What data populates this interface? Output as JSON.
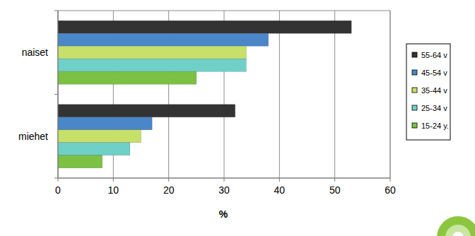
{
  "chart_data": {
    "type": "bar",
    "orientation": "horizontal",
    "x_label": "%",
    "categories": [
      "naiset",
      "miehet"
    ],
    "series": [
      {
        "name": "55-64 v",
        "color": "#333333",
        "values": [
          53,
          32
        ]
      },
      {
        "name": "45-54 v",
        "color": "#4a86c8",
        "values": [
          38,
          17
        ]
      },
      {
        "name": "35-44 v",
        "color": "#c6e06a",
        "values": [
          34,
          15
        ]
      },
      {
        "name": "25-34 v",
        "color": "#6fd0c8",
        "values": [
          34,
          13
        ]
      },
      {
        "name": "15-24 y.",
        "color": "#7cc144",
        "values": [
          25,
          8
        ]
      }
    ],
    "xlim": [
      0,
      60
    ],
    "xticks": [
      0,
      10,
      20,
      30,
      40,
      50,
      60
    ],
    "grid": true,
    "legend": "right"
  }
}
